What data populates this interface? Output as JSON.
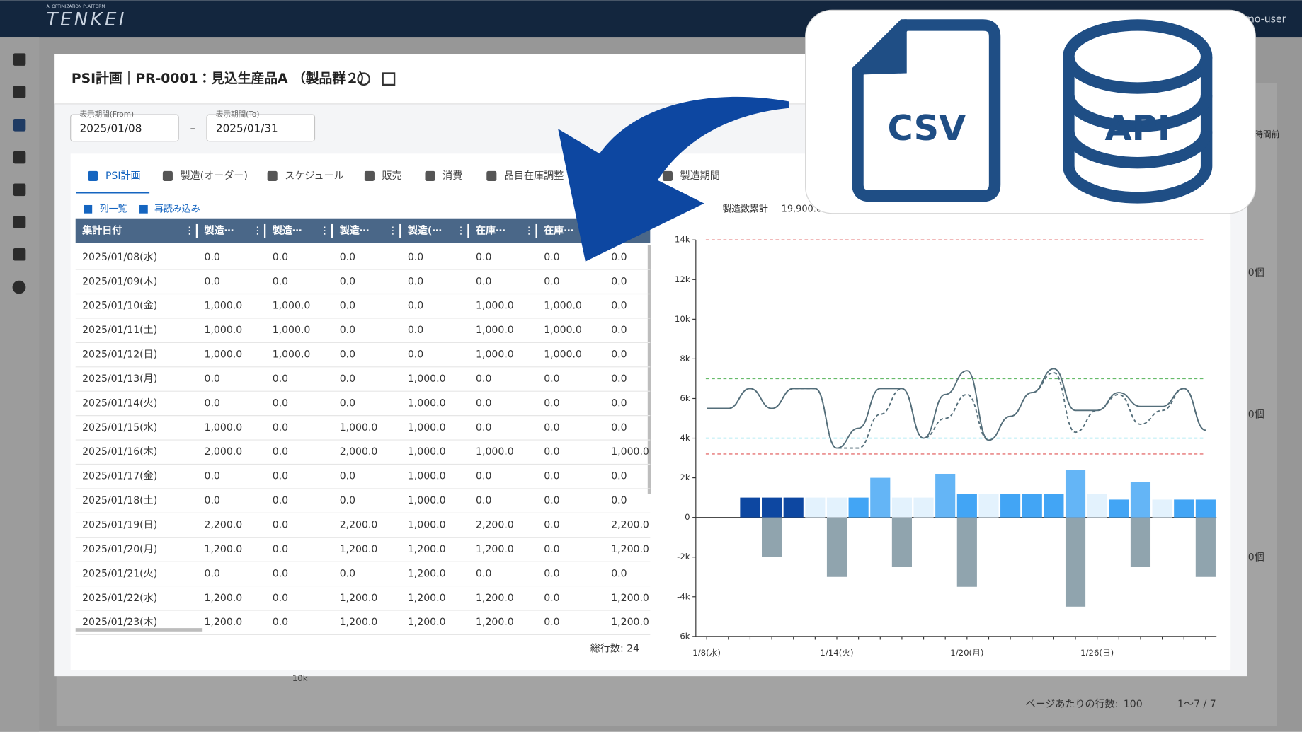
{
  "header": {
    "logo": "TENKEI",
    "tagline": "AI OPTIMIZATION PLATFORM",
    "user": "mo-user"
  },
  "dialog": {
    "title": "PSI計画｜PR-0001：見込生産品A （製品群２）",
    "from_label": "表示期間(From)",
    "from": "2025/01/08",
    "separator": "–",
    "to_label": "表示期間(To)",
    "to": "2025/01/31"
  },
  "tabs": [
    "PSI計画",
    "製造(オーダー)",
    "スケジュール",
    "販売",
    "消費",
    "品目在庫調整",
    "製造期間"
  ],
  "toolbar": [
    "列一覧",
    "再読み込み"
  ],
  "table": {
    "headers": [
      "集計日付",
      "製造⋯",
      "製造⋯",
      "製造⋯",
      "製造(⋯",
      "在庫⋯",
      "在庫⋯"
    ],
    "rows": [
      [
        "2025/01/08(水)",
        "0.0",
        "0.0",
        "0.0",
        "0.0",
        "0.0",
        "0.0",
        "0.0"
      ],
      [
        "2025/01/09(木)",
        "0.0",
        "0.0",
        "0.0",
        "0.0",
        "0.0",
        "0.0",
        "0.0"
      ],
      [
        "2025/01/10(金)",
        "1,000.0",
        "1,000.0",
        "0.0",
        "0.0",
        "1,000.0",
        "1,000.0",
        "0.0"
      ],
      [
        "2025/01/11(土)",
        "1,000.0",
        "1,000.0",
        "0.0",
        "0.0",
        "1,000.0",
        "1,000.0",
        "0.0"
      ],
      [
        "2025/01/12(日)",
        "1,000.0",
        "1,000.0",
        "0.0",
        "0.0",
        "1,000.0",
        "1,000.0",
        "0.0"
      ],
      [
        "2025/01/13(月)",
        "0.0",
        "0.0",
        "0.0",
        "1,000.0",
        "0.0",
        "0.0",
        "0.0"
      ],
      [
        "2025/01/14(火)",
        "0.0",
        "0.0",
        "0.0",
        "1,000.0",
        "0.0",
        "0.0",
        "0.0"
      ],
      [
        "2025/01/15(水)",
        "1,000.0",
        "0.0",
        "1,000.0",
        "1,000.0",
        "0.0",
        "0.0",
        "0.0"
      ],
      [
        "2025/01/16(木)",
        "2,000.0",
        "0.0",
        "2,000.0",
        "1,000.0",
        "1,000.0",
        "0.0",
        "1,000.0"
      ],
      [
        "2025/01/17(金)",
        "0.0",
        "0.0",
        "0.0",
        "1,000.0",
        "0.0",
        "0.0",
        "0.0"
      ],
      [
        "2025/01/18(土)",
        "0.0",
        "0.0",
        "0.0",
        "1,000.0",
        "0.0",
        "0.0",
        "0.0"
      ],
      [
        "2025/01/19(日)",
        "2,200.0",
        "0.0",
        "2,200.0",
        "1,000.0",
        "2,200.0",
        "0.0",
        "2,200.0"
      ],
      [
        "2025/01/20(月)",
        "1,200.0",
        "0.0",
        "1,200.0",
        "1,200.0",
        "1,200.0",
        "0.0",
        "1,200.0"
      ],
      [
        "2025/01/21(火)",
        "0.0",
        "0.0",
        "0.0",
        "1,200.0",
        "0.0",
        "0.0",
        "0.0"
      ],
      [
        "2025/01/22(水)",
        "1,200.0",
        "0.0",
        "1,200.0",
        "1,200.0",
        "1,200.0",
        "0.0",
        "1,200.0"
      ],
      [
        "2025/01/23(木)",
        "1,200.0",
        "0.0",
        "1,200.0",
        "1,200.0",
        "1,200.0",
        "0.0",
        "1,200.0"
      ]
    ],
    "total_rows": "総行数: 24"
  },
  "chart_data": {
    "type": "combo",
    "summary_label": "製造数累計",
    "summary_value": "19,900.0",
    "categories": [
      "1/8(水)",
      null,
      null,
      null,
      null,
      null,
      "1/14(火)",
      null,
      null,
      null,
      null,
      null,
      "1/20(月)",
      null,
      null,
      null,
      null,
      null,
      "1/26(日)",
      null,
      null,
      null,
      null,
      null
    ],
    "ylim": [
      -6000,
      14000
    ],
    "yticks": [
      {
        "value": -6000,
        "label": "-6k"
      },
      {
        "value": -4000,
        "label": "-4k"
      },
      {
        "value": -2000,
        "label": "-2k"
      },
      0,
      {
        "value": 2000,
        "label": "2k"
      },
      {
        "value": 4000,
        "label": "4k"
      },
      {
        "value": 6000,
        "label": "6k"
      },
      {
        "value": 8000,
        "label": "8k"
      },
      {
        "value": 10000,
        "label": "10k"
      },
      {
        "value": 12000,
        "label": "12k"
      },
      {
        "value": 14000,
        "label": "14k"
      }
    ],
    "series": [
      {
        "kind": "bar",
        "values": [
          null,
          null,
          1000,
          1000,
          1000,
          1000,
          1000,
          1000,
          2000,
          1000,
          1000,
          2200,
          1200,
          1200,
          1200,
          1200,
          1200,
          2400,
          1200,
          900,
          1800,
          900,
          900,
          900
        ],
        "colors": [
          "#0d47a1",
          "#0d47a1",
          "#0d47a1",
          "#0d47a1",
          "#0d47a1",
          "#e3f2fd",
          "#e3f2fd",
          "#42a5f5",
          "#64b5f6",
          "#e3f2fd",
          "#e3f2fd",
          "#64b5f6",
          "#42a5f5",
          "#e3f2fd",
          "#42a5f5",
          "#42a5f5",
          "#42a5f5",
          "#64b5f6",
          "#e3f2fd",
          "#42a5f5",
          "#64b5f6",
          "#e3f2fd",
          "#42a5f5",
          "#42a5f5"
        ]
      },
      {
        "kind": "bar",
        "color": "#90a4ae",
        "values": [
          null,
          null,
          null,
          -2000,
          null,
          null,
          -3000,
          null,
          null,
          -2500,
          null,
          null,
          -3500,
          null,
          null,
          null,
          null,
          -4500,
          null,
          null,
          -2500,
          null,
          null,
          -3000
        ]
      },
      {
        "kind": "line",
        "color": "#546e7a",
        "dashed": false,
        "values": [
          5500,
          5500,
          6500,
          5500,
          6500,
          6500,
          3500,
          4500,
          6500,
          6500,
          4000,
          6200,
          7400,
          3900,
          5100,
          6300,
          7500,
          5400,
          5400,
          6300,
          5600,
          5600,
          6500,
          4400
        ]
      },
      {
        "kind": "line",
        "color": "#546e7a",
        "dashed": true,
        "values": [
          5500,
          5500,
          6500,
          5500,
          6500,
          6500,
          3500,
          3500,
          5200,
          6500,
          4000,
          5000,
          6200,
          3900,
          5100,
          6300,
          7300,
          4300,
          5400,
          6200,
          4700,
          5400,
          6500,
          4400
        ]
      }
    ],
    "reference_lines": [
      {
        "value": 14000,
        "color": "#e57373"
      },
      {
        "value": 7000,
        "color": "#66bb6a"
      },
      {
        "value": 4000,
        "color": "#4dd0e1"
      },
      {
        "value": 3200,
        "color": "#e57373"
      }
    ]
  },
  "overlay": {
    "csv": "CSV",
    "api": "API"
  },
  "background": {
    "unit_labels": [
      "0個",
      "0個",
      "0個"
    ],
    "side_label": "時間前",
    "axis_label": "10k",
    "rows_per_page_label": "ページあたりの行数:",
    "rows_per_page": "100",
    "range": "1〜7 / 7"
  }
}
